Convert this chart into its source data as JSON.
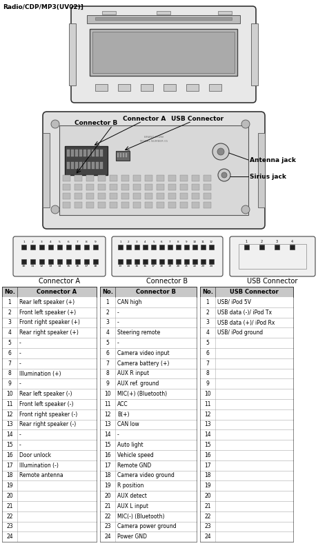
{
  "title": "Radio/CDP/MP3(UV02)]",
  "connector_a_label": "Connector A",
  "connector_b_label": "Connector B",
  "usb_connector_label": "USB Connector",
  "antenna_jack_label": "Antenna jack",
  "sirius_jack_label": "Sirius jack",
  "connector_a_data": [
    [
      1,
      "Rear left speaker (+)"
    ],
    [
      2,
      "Front left speaker (+)"
    ],
    [
      3,
      "Front right speaker (+)"
    ],
    [
      4,
      "Rear right speaker (+)"
    ],
    [
      5,
      "-"
    ],
    [
      6,
      "-"
    ],
    [
      7,
      "-"
    ],
    [
      8,
      "Illumination (+)"
    ],
    [
      9,
      "-"
    ],
    [
      10,
      "Rear left speaker (-)"
    ],
    [
      11,
      "Front left speaker (-)"
    ],
    [
      12,
      "Front right speaker (-)"
    ],
    [
      13,
      "Rear right speaker (-)"
    ],
    [
      14,
      "-"
    ],
    [
      15,
      "-"
    ],
    [
      16,
      "Door unlock"
    ],
    [
      17,
      "Illumination (-)"
    ],
    [
      18,
      "Remote antenna"
    ],
    [
      19,
      ""
    ],
    [
      20,
      ""
    ],
    [
      21,
      ""
    ],
    [
      22,
      ""
    ],
    [
      23,
      ""
    ],
    [
      24,
      ""
    ]
  ],
  "connector_b_data": [
    [
      1,
      "CAN high"
    ],
    [
      2,
      "-"
    ],
    [
      3,
      "-"
    ],
    [
      4,
      "Steering remote"
    ],
    [
      5,
      "-"
    ],
    [
      6,
      "Camera video input"
    ],
    [
      7,
      "Camera battery (+)"
    ],
    [
      8,
      "AUX R input"
    ],
    [
      9,
      "AUX ref. ground"
    ],
    [
      10,
      "MIC(+) (Bluetooth)"
    ],
    [
      11,
      "ACC"
    ],
    [
      12,
      "B(+)"
    ],
    [
      13,
      "CAN low"
    ],
    [
      14,
      "-"
    ],
    [
      15,
      "Auto light"
    ],
    [
      16,
      "Vehicle speed"
    ],
    [
      17,
      "Remote GND"
    ],
    [
      18,
      "Camera video ground"
    ],
    [
      19,
      "R position"
    ],
    [
      20,
      "AUX detect"
    ],
    [
      21,
      "AUX L input"
    ],
    [
      22,
      "MIC(-) (Bluetooth)"
    ],
    [
      23,
      "Camera power ground"
    ],
    [
      24,
      "Power GND"
    ]
  ],
  "usb_connector_data": [
    [
      1,
      "USB/ iPod 5V"
    ],
    [
      2,
      "USB data (-)/ iPod Tx"
    ],
    [
      3,
      "USB data (+)/ iPod Rx"
    ],
    [
      4,
      "USB/ iPod ground"
    ],
    [
      5,
      ""
    ],
    [
      6,
      ""
    ],
    [
      7,
      ""
    ],
    [
      8,
      ""
    ],
    [
      9,
      ""
    ],
    [
      10,
      ""
    ],
    [
      11,
      ""
    ],
    [
      12,
      ""
    ],
    [
      13,
      ""
    ],
    [
      14,
      ""
    ],
    [
      15,
      ""
    ],
    [
      16,
      ""
    ],
    [
      17,
      ""
    ],
    [
      18,
      ""
    ],
    [
      19,
      ""
    ],
    [
      20,
      ""
    ],
    [
      21,
      ""
    ],
    [
      22,
      ""
    ],
    [
      23,
      ""
    ],
    [
      24,
      ""
    ]
  ]
}
